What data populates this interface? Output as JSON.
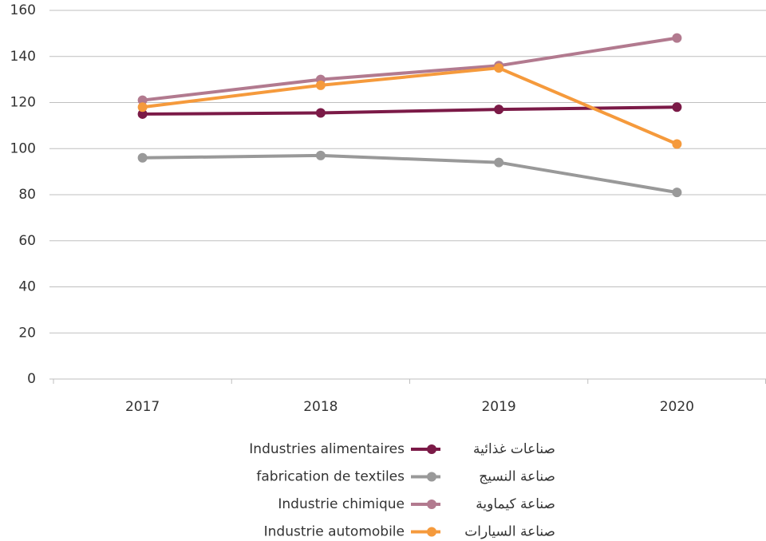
{
  "chart_data": {
    "type": "line",
    "categories": [
      "2017",
      "2018",
      "2019",
      "2020"
    ],
    "series": [
      {
        "name": "Industries alimentaires",
        "name_ar": "صناعات غذائية",
        "color": "#7b1a47",
        "values": [
          115,
          115.5,
          117,
          118
        ]
      },
      {
        "name": "fabrication de textiles",
        "name_ar": "صناعة النسيج",
        "color": "#999999",
        "values": [
          96,
          97,
          94,
          81
        ]
      },
      {
        "name": "Industrie chimique",
        "name_ar": "صناعة كيماوية",
        "color": "#b27a8f",
        "values": [
          121,
          130,
          136,
          148
        ]
      },
      {
        "name": "Industrie automobile",
        "name_ar": "صناعة السيارات",
        "color": "#f59a3c",
        "values": [
          118,
          127.5,
          135,
          102
        ]
      }
    ],
    "ylim": [
      0,
      160
    ],
    "yticks": [
      0,
      20,
      40,
      60,
      80,
      100,
      120,
      140,
      160
    ],
    "grid": true,
    "legend": "bottom"
  }
}
